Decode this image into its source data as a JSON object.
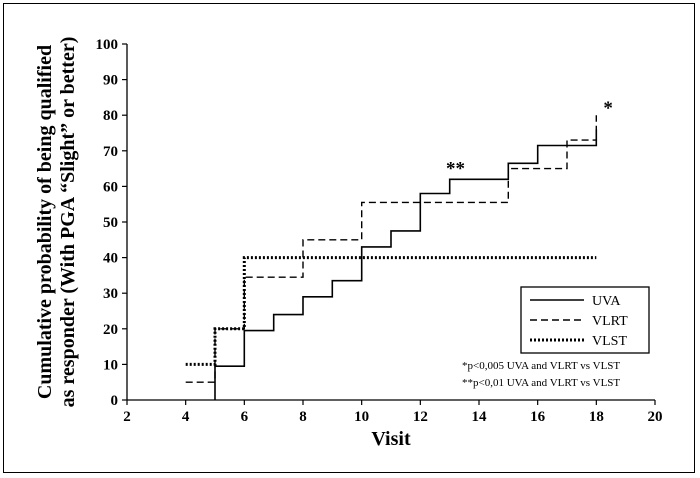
{
  "chart_data": {
    "type": "line",
    "line_shape": "step",
    "xlabel": "Visit",
    "ylabel_lines": [
      "Cumulative probability of being qualified",
      "as responder (With PGA “Slight” or better)"
    ],
    "xlim": [
      2,
      20
    ],
    "ylim": [
      0,
      100
    ],
    "x_ticks": [
      "2",
      "4",
      "6",
      "8",
      "10",
      "12",
      "14",
      "16",
      "18",
      "20"
    ],
    "y_ticks": [
      "0",
      "10",
      "20",
      "30",
      "40",
      "50",
      "60",
      "70",
      "80",
      "90",
      "100"
    ],
    "grid": false,
    "legend_position": "bottom-right",
    "series": [
      {
        "name": "UVA",
        "style": "solid",
        "color": "#000000",
        "x": [
          5,
          5,
          6,
          6,
          7,
          7,
          8,
          8,
          9,
          9,
          10,
          10,
          11,
          11,
          12,
          12,
          13,
          13,
          15,
          15,
          16,
          16,
          18,
          18
        ],
        "y": [
          0,
          9.5,
          9.5,
          19.5,
          19.5,
          24,
          24,
          29,
          29,
          33.5,
          33.5,
          43,
          43,
          47.5,
          47.5,
          58,
          58,
          62,
          62,
          66.5,
          66.5,
          71.5,
          71.5,
          76
        ]
      },
      {
        "name": "VLRT",
        "style": "dashed",
        "color": "#000000",
        "x": [
          4,
          5,
          5,
          6,
          6,
          8,
          8,
          10,
          10,
          15,
          15,
          17,
          17,
          18,
          18
        ],
        "y": [
          5,
          5,
          20,
          20,
          34.5,
          34.5,
          45,
          45,
          55.5,
          55.5,
          65,
          65,
          73,
          73,
          80
        ]
      },
      {
        "name": "VLST",
        "style": "dotted",
        "color": "#000000",
        "x": [
          4,
          5,
          5,
          6,
          6,
          18
        ],
        "y": [
          10,
          10,
          20,
          20,
          40,
          40
        ]
      }
    ],
    "annotations": [
      {
        "text": "**",
        "x": 13.2,
        "y": 62
      },
      {
        "text": "*",
        "x": 18.4,
        "y": 79
      }
    ],
    "notes": [
      "*p<0,005 UVA and VLRT vs VLST",
      "**p<0,01 UVA and VLRT vs VLST"
    ]
  }
}
